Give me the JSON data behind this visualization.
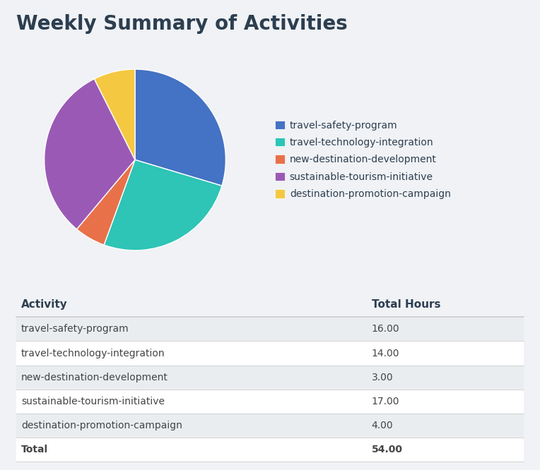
{
  "title": "Weekly Summary of Activities",
  "activities": [
    "travel-safety-program",
    "travel-technology-integration",
    "new-destination-development",
    "sustainable-tourism-initiative",
    "destination-promotion-campaign"
  ],
  "hours": [
    16.0,
    14.0,
    3.0,
    17.0,
    4.0
  ],
  "total": 54.0,
  "colors": [
    "#4472C4",
    "#2EC4B6",
    "#E8714A",
    "#9B59B6",
    "#F5C842"
  ],
  "background_color": "#f0f2f5",
  "table_bg_even": "#eaedf0",
  "table_bg_odd": "#ffffff",
  "title_color": "#2c3e50",
  "title_fontsize": 20,
  "legend_fontsize": 10,
  "table_header_color": "#2c3e50",
  "table_text_color": "#444444",
  "col_activity": "Activity",
  "col_hours": "Total Hours",
  "divider_color": "#cccccc"
}
